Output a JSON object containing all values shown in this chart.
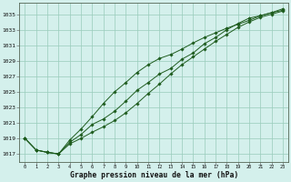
{
  "xlabel": "Graphe pression niveau de la mer (hPa)",
  "bg_color": "#d4f0ec",
  "grid_color": "#99ccbb",
  "line_color": "#1e5c1e",
  "marker_color": "#1e5c1e",
  "x_hours": [
    0,
    1,
    2,
    3,
    4,
    5,
    6,
    7,
    8,
    9,
    10,
    11,
    12,
    13,
    14,
    15,
    16,
    17,
    18,
    19,
    20,
    21,
    22,
    23
  ],
  "series1": [
    1019.0,
    1017.5,
    1017.2,
    1017.0,
    1018.5,
    1019.5,
    1020.8,
    1021.5,
    1022.5,
    1023.8,
    1025.2,
    1026.2,
    1027.3,
    1028.0,
    1029.2,
    1030.0,
    1031.2,
    1032.0,
    1033.0,
    1033.8,
    1034.5,
    1034.8,
    1035.2,
    1035.5
  ],
  "series2": [
    1019.0,
    1017.5,
    1017.2,
    1017.0,
    1018.8,
    1020.2,
    1021.8,
    1023.5,
    1025.0,
    1026.2,
    1027.5,
    1028.5,
    1029.3,
    1029.8,
    1030.5,
    1031.3,
    1032.0,
    1032.6,
    1033.2,
    1033.7,
    1034.2,
    1034.8,
    1035.2,
    1035.7
  ],
  "series3": [
    1019.0,
    1017.5,
    1017.2,
    1017.0,
    1018.3,
    1019.0,
    1019.8,
    1020.5,
    1021.3,
    1022.3,
    1023.5,
    1024.8,
    1026.0,
    1027.3,
    1028.5,
    1029.5,
    1030.5,
    1031.5,
    1032.4,
    1033.3,
    1034.0,
    1034.6,
    1035.0,
    1035.4
  ],
  "ylim": [
    1016.0,
    1036.5
  ],
  "yticks": [
    1017,
    1019,
    1021,
    1023,
    1025,
    1027,
    1029,
    1031,
    1033,
    1035
  ],
  "xlim": [
    -0.5,
    23.5
  ],
  "xticks": [
    0,
    1,
    2,
    3,
    4,
    5,
    6,
    7,
    8,
    9,
    10,
    11,
    12,
    13,
    14,
    15,
    16,
    17,
    18,
    19,
    20,
    21,
    22,
    23
  ]
}
